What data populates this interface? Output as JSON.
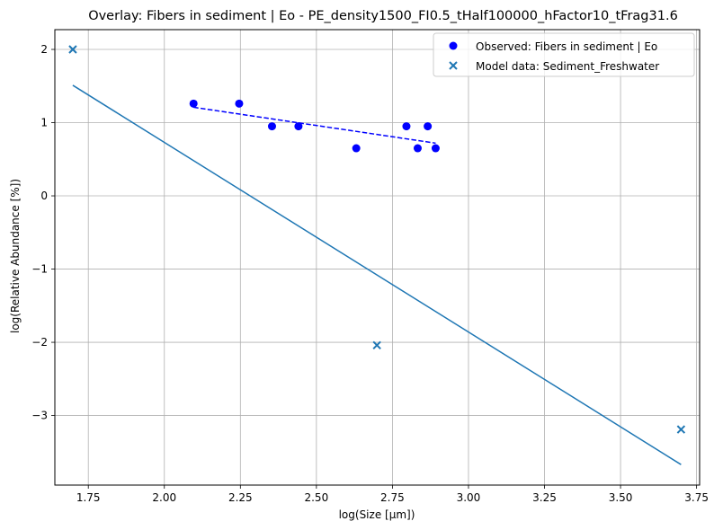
{
  "chart_data": {
    "type": "scatter",
    "title": "Overlay: Fibers in sediment | Eo - PE_density1500_FI0.5_tHalf100000_hFactor10_tFrag31.6",
    "xlabel": "log(Size [μm])",
    "ylabel": "log(Relative Abundance [%])",
    "xlim": [
      1.64,
      3.76
    ],
    "ylim": [
      -3.95,
      2.27
    ],
    "xticks": [
      1.75,
      2.0,
      2.25,
      2.5,
      2.75,
      3.0,
      3.25,
      3.5,
      3.75
    ],
    "xtick_labels": [
      "1.75",
      "2.00",
      "2.25",
      "2.50",
      "2.75",
      "3.00",
      "3.25",
      "3.50",
      "3.75"
    ],
    "yticks": [
      -3,
      -2,
      -1,
      0,
      1,
      2
    ],
    "ytick_labels": [
      "−3",
      "−2",
      "−1",
      "0",
      "1",
      "2"
    ],
    "grid": true,
    "legend_position": "top-right",
    "series": [
      {
        "name": "Observed: Fibers in sediment | Eo",
        "kind": "scatter",
        "marker": "circle",
        "color": "#0000ff",
        "x": [
          2.096,
          2.246,
          2.354,
          2.441,
          2.631,
          2.796,
          2.833,
          2.866,
          2.892
        ],
        "y": [
          1.26,
          1.26,
          0.95,
          0.95,
          0.65,
          0.95,
          0.65,
          0.95,
          0.65
        ]
      },
      {
        "name": "Model data: Sediment_Freshwater",
        "kind": "scatter",
        "marker": "x",
        "color": "#1f77b4",
        "x": [
          1.699,
          2.699,
          3.699
        ],
        "y": [
          2.0,
          -2.04,
          -3.19
        ]
      },
      {
        "kind": "line",
        "style": "dashed",
        "color": "#0000ff",
        "x": [
          2.096,
          2.892
        ],
        "y": [
          1.21,
          0.72
        ]
      },
      {
        "kind": "line",
        "style": "solid",
        "color": "#1f77b4",
        "x": [
          1.699,
          3.699
        ],
        "y": [
          1.51,
          -3.67
        ]
      }
    ]
  }
}
